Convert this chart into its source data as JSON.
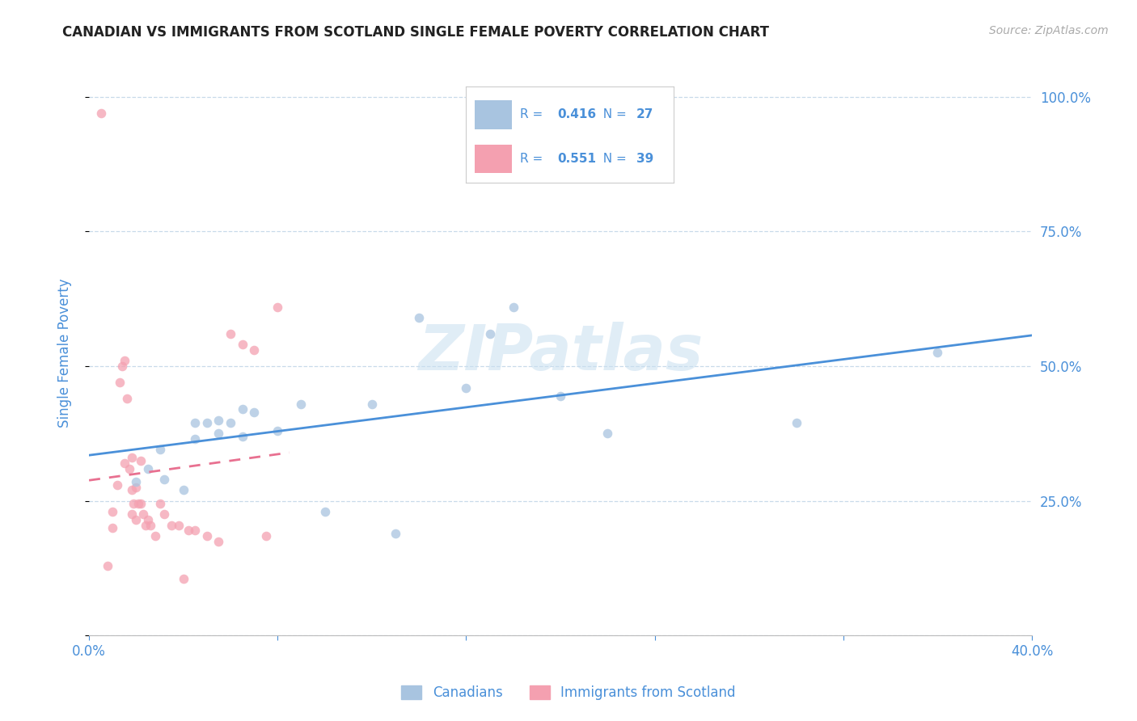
{
  "title": "CANADIAN VS IMMIGRANTS FROM SCOTLAND SINGLE FEMALE POVERTY CORRELATION CHART",
  "source": "Source: ZipAtlas.com",
  "ylabel": "Single Female Poverty",
  "xlim": [
    0.0,
    0.4
  ],
  "ylim": [
    0.0,
    1.05
  ],
  "yticks": [
    0.0,
    0.25,
    0.5,
    0.75,
    1.0
  ],
  "ytick_labels": [
    "",
    "25.0%",
    "50.0%",
    "75.0%",
    "100.0%"
  ],
  "xticks": [
    0.0,
    0.08,
    0.16,
    0.24,
    0.32,
    0.4
  ],
  "xtick_labels": [
    "0.0%",
    "",
    "",
    "",
    "",
    "40.0%"
  ],
  "canadians_R": 0.416,
  "canadians_N": 27,
  "scotland_R": 0.551,
  "scotland_N": 39,
  "canadians_color": "#a8c4e0",
  "scotland_color": "#f4a0b0",
  "line_canadian_color": "#4a90d9",
  "line_scotland_color": "#e87090",
  "watermark": "ZIPatlas",
  "canadians_x": [
    0.02,
    0.025,
    0.03,
    0.032,
    0.04,
    0.045,
    0.045,
    0.05,
    0.055,
    0.055,
    0.06,
    0.065,
    0.065,
    0.07,
    0.08,
    0.09,
    0.1,
    0.12,
    0.13,
    0.14,
    0.16,
    0.17,
    0.18,
    0.2,
    0.22,
    0.3,
    0.36
  ],
  "canadians_y": [
    0.285,
    0.31,
    0.345,
    0.29,
    0.27,
    0.365,
    0.395,
    0.395,
    0.375,
    0.4,
    0.395,
    0.42,
    0.37,
    0.415,
    0.38,
    0.43,
    0.23,
    0.43,
    0.19,
    0.59,
    0.46,
    0.56,
    0.61,
    0.445,
    0.375,
    0.395,
    0.525
  ],
  "scotland_x": [
    0.005,
    0.008,
    0.01,
    0.01,
    0.012,
    0.013,
    0.014,
    0.015,
    0.015,
    0.016,
    0.017,
    0.018,
    0.018,
    0.018,
    0.019,
    0.02,
    0.02,
    0.021,
    0.022,
    0.022,
    0.023,
    0.024,
    0.025,
    0.026,
    0.028,
    0.03,
    0.032,
    0.035,
    0.038,
    0.04,
    0.042,
    0.045,
    0.05,
    0.055,
    0.06,
    0.065,
    0.07,
    0.075,
    0.08
  ],
  "scotland_y": [
    0.97,
    0.13,
    0.23,
    0.2,
    0.28,
    0.47,
    0.5,
    0.51,
    0.32,
    0.44,
    0.31,
    0.27,
    0.33,
    0.225,
    0.245,
    0.215,
    0.275,
    0.245,
    0.325,
    0.245,
    0.225,
    0.205,
    0.215,
    0.205,
    0.185,
    0.245,
    0.225,
    0.205,
    0.205,
    0.105,
    0.195,
    0.195,
    0.185,
    0.175,
    0.56,
    0.54,
    0.53,
    0.185,
    0.61
  ],
  "title_fontsize": 12,
  "tick_color": "#4a90d9",
  "scatter_size": 70,
  "scatter_alpha": 0.75,
  "line_width": 2.0
}
